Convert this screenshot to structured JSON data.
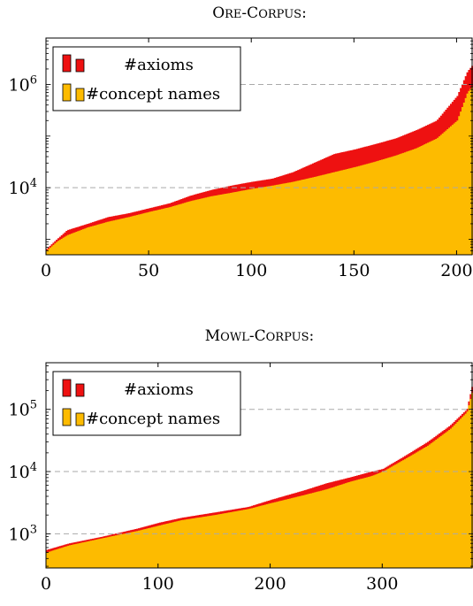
{
  "chart_data": [
    {
      "type": "area",
      "title": "ORE-CORPUS:",
      "y_scale": "log",
      "xlim": [
        0,
        208
      ],
      "ylim_exp": [
        2.7,
        6.9
      ],
      "x_ticks": [
        0,
        50,
        100,
        150,
        200
      ],
      "x_tick_labels": [
        "0",
        "50",
        "100",
        "150",
        "200"
      ],
      "y_ticks": [
        {
          "base": "10",
          "exp": "6",
          "value_exp": 6
        },
        {
          "base": "10",
          "exp": "4",
          "value_exp": 4
        }
      ],
      "grid_y": true,
      "legend": [
        "#axioms",
        "#concept names"
      ],
      "legend_position": "top-left",
      "series": [
        {
          "name": "#axioms",
          "color": "#ee1111",
          "points": [
            [
              0,
              650
            ],
            [
              5,
              1000
            ],
            [
              10,
              1500
            ],
            [
              20,
              2000
            ],
            [
              30,
              2700
            ],
            [
              40,
              3200
            ],
            [
              50,
              4000
            ],
            [
              60,
              5000
            ],
            [
              70,
              7000
            ],
            [
              80,
              9000
            ],
            [
              90,
              11000
            ],
            [
              100,
              13000
            ],
            [
              110,
              15000
            ],
            [
              120,
              20000
            ],
            [
              130,
              30000
            ],
            [
              140,
              45000
            ],
            [
              150,
              55000
            ],
            [
              160,
              70000
            ],
            [
              170,
              90000
            ],
            [
              180,
              130000
            ],
            [
              190,
              200000
            ],
            [
              200,
              600000
            ],
            [
              205,
              1800000
            ],
            [
              208,
              2500000
            ]
          ]
        },
        {
          "name": "#concept names",
          "color": "#fdbb00",
          "points": [
            [
              0,
              600
            ],
            [
              5,
              900
            ],
            [
              10,
              1200
            ],
            [
              20,
              1700
            ],
            [
              30,
              2200
            ],
            [
              40,
              2700
            ],
            [
              50,
              3400
            ],
            [
              60,
              4200
            ],
            [
              70,
              5500
            ],
            [
              80,
              6800
            ],
            [
              90,
              8000
            ],
            [
              100,
              9500
            ],
            [
              110,
              11000
            ],
            [
              120,
              13000
            ],
            [
              130,
              16000
            ],
            [
              140,
              20000
            ],
            [
              150,
              25000
            ],
            [
              160,
              32000
            ],
            [
              170,
              42000
            ],
            [
              180,
              58000
            ],
            [
              190,
              90000
            ],
            [
              200,
              200000
            ],
            [
              205,
              700000
            ],
            [
              208,
              1000000
            ]
          ]
        }
      ]
    },
    {
      "type": "area",
      "title": "MOWL-CORPUS:",
      "y_scale": "log",
      "xlim": [
        0,
        381
      ],
      "ylim_exp": [
        2.45,
        5.75
      ],
      "x_ticks": [
        0,
        100,
        200,
        300
      ],
      "x_tick_labels": [
        "0",
        "100",
        "200",
        "300"
      ],
      "y_ticks": [
        {
          "base": "10",
          "exp": "5",
          "value_exp": 5
        },
        {
          "base": "10",
          "exp": "4",
          "value_exp": 4
        },
        {
          "base": "10",
          "exp": "3",
          "value_exp": 3
        }
      ],
      "grid_y": true,
      "legend": [
        "#axioms",
        "#concept names"
      ],
      "legend_position": "top-left",
      "series": [
        {
          "name": "#axioms",
          "color": "#ee1111",
          "points": [
            [
              0,
              550
            ],
            [
              20,
              700
            ],
            [
              50,
              900
            ],
            [
              80,
              1200
            ],
            [
              100,
              1500
            ],
            [
              120,
              1800
            ],
            [
              150,
              2200
            ],
            [
              180,
              2700
            ],
            [
              200,
              3500
            ],
            [
              230,
              5000
            ],
            [
              250,
              6500
            ],
            [
              270,
              8000
            ],
            [
              290,
              10000
            ],
            [
              300,
              11000
            ],
            [
              320,
              18000
            ],
            [
              340,
              30000
            ],
            [
              360,
              55000
            ],
            [
              375,
              100000
            ],
            [
              380,
              250000
            ],
            [
              381,
              300000
            ]
          ]
        },
        {
          "name": "#concept names",
          "color": "#fdbb00",
          "points": [
            [
              0,
              500
            ],
            [
              20,
              650
            ],
            [
              50,
              850
            ],
            [
              80,
              1100
            ],
            [
              100,
              1350
            ],
            [
              120,
              1650
            ],
            [
              150,
              2000
            ],
            [
              180,
              2500
            ],
            [
              200,
              3100
            ],
            [
              230,
              4200
            ],
            [
              250,
              5200
            ],
            [
              270,
              6800
            ],
            [
              290,
              8500
            ],
            [
              300,
              10000
            ],
            [
              320,
              16000
            ],
            [
              340,
              26000
            ],
            [
              360,
              48000
            ],
            [
              375,
              90000
            ],
            [
              380,
              200000
            ],
            [
              381,
              250000
            ]
          ]
        }
      ]
    }
  ]
}
